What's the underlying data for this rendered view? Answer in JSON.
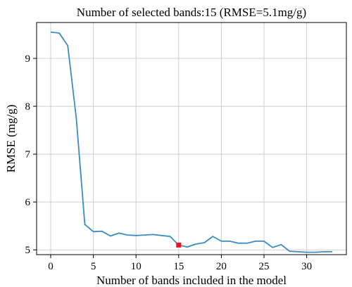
{
  "chart_data": {
    "type": "line",
    "title": "Number of selected bands:15 (RMSE=5.1mg/g)",
    "xlabel": "Number of bands included in the model",
    "ylabel": "RMSE (mg/g)",
    "xlim": [
      -1.65,
      34.65
    ],
    "ylim": [
      4.9,
      9.75
    ],
    "xticks": [
      0,
      5,
      10,
      15,
      20,
      25,
      30
    ],
    "yticks": [
      5,
      6,
      7,
      8,
      9
    ],
    "grid": true,
    "series": [
      {
        "color": "#3b8cc4",
        "x": [
          0,
          1,
          2,
          3,
          4,
          5,
          6,
          7,
          8,
          9,
          10,
          11,
          12,
          13,
          14,
          15,
          16,
          17,
          18,
          19,
          20,
          21,
          22,
          23,
          24,
          25,
          26,
          27,
          28,
          29,
          30,
          31,
          32,
          33
        ],
        "y": [
          9.55,
          9.53,
          9.27,
          7.75,
          5.53,
          5.38,
          5.39,
          5.29,
          5.35,
          5.31,
          5.3,
          5.31,
          5.32,
          5.3,
          5.28,
          5.1,
          5.06,
          5.12,
          5.15,
          5.28,
          5.18,
          5.18,
          5.14,
          5.14,
          5.18,
          5.18,
          5.05,
          5.11,
          4.97,
          4.96,
          4.95,
          4.95,
          4.96,
          4.96
        ]
      }
    ],
    "highlight": {
      "x": 15,
      "y": 5.1,
      "color": "#e8141e"
    }
  }
}
